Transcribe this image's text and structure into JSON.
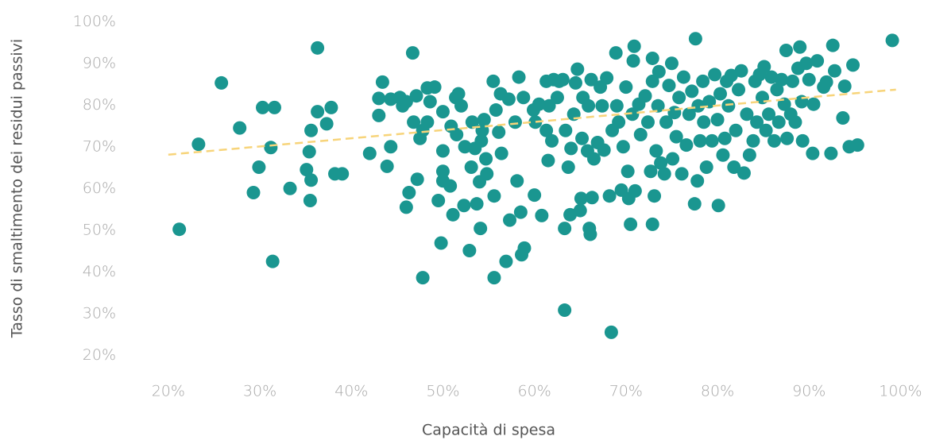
{
  "chart_data": {
    "type": "scatter",
    "xlabel": "Capacità di spesa",
    "ylabel": "Tasso di smaltimento dei residui passivi",
    "color": "#1a9690",
    "xlim": [
      15.5,
      103
    ],
    "ylim": [
      17,
      101
    ],
    "xticks": [
      {
        "value": 20,
        "label": "20%"
      },
      {
        "value": 30,
        "label": "30%"
      },
      {
        "value": 40,
        "label": "40%"
      },
      {
        "value": 50,
        "label": "50%"
      },
      {
        "value": 60,
        "label": "60%"
      },
      {
        "value": 70,
        "label": "70%"
      },
      {
        "value": 80,
        "label": "80%"
      },
      {
        "value": 90,
        "label": "90%"
      },
      {
        "value": 100,
        "label": "100%"
      }
    ],
    "yticks": [
      {
        "value": 20,
        "label": "20%"
      },
      {
        "value": 30,
        "label": "30%"
      },
      {
        "value": 40,
        "label": "40%"
      },
      {
        "value": 50,
        "label": "50%"
      },
      {
        "value": 60,
        "label": "60%"
      },
      {
        "value": 70,
        "label": "70%"
      },
      {
        "value": 80,
        "label": "80%"
      },
      {
        "value": 90,
        "label": "90%"
      },
      {
        "value": 100,
        "label": "100%"
      }
    ],
    "x": [
      21.2,
      23.3,
      25.8,
      27.8,
      29.3,
      29.9,
      30.3,
      31.2,
      31.6,
      31.4,
      33.3,
      35.1,
      35.4,
      35.5,
      35.6,
      35.6,
      36.3,
      36.3,
      37.3,
      37.8,
      38.2,
      39,
      42,
      43,
      43,
      43.4,
      43.9,
      44.3,
      44.3,
      45.3,
      45.6,
      46,
      46,
      46.3,
      46.7,
      46.8,
      47.1,
      47.2,
      47.5,
      47.8,
      47.8,
      48.3,
      48.3,
      49.1,
      48.6,
      49.5,
      49.8,
      50,
      50,
      50,
      50,
      50.8,
      50.9,
      51.1,
      51.4,
      51.5,
      51.7,
      52,
      52.3,
      52.4,
      52.9,
      53.1,
      53.2,
      53.5,
      53.7,
      54,
      54.1,
      54.2,
      54.3,
      54.5,
      54.7,
      54.8,
      55.5,
      55.6,
      55.6,
      55.8,
      56.1,
      56.3,
      56.4,
      56.9,
      57.2,
      57.3,
      57.9,
      58.1,
      58.3,
      58.5,
      58.6,
      58.8,
      58.9,
      59.9,
      60,
      60.1,
      60.5,
      60.8,
      61.3,
      61.3,
      61.5,
      61.6,
      61.9,
      62.1,
      62.5,
      62.7,
      63.1,
      63.3,
      63.3,
      63.4,
      63.7,
      63.9,
      64,
      64.3,
      64.5,
      64.7,
      65,
      65.1,
      65.2,
      65.3,
      65.8,
      65.9,
      66,
      66.1,
      66.2,
      66.3,
      66.5,
      66.9,
      67.2,
      67.4,
      67.6,
      67.9,
      68.2,
      68.4,
      68.5,
      68.9,
      69,
      69.2,
      69.5,
      69.7,
      70,
      70.2,
      70.3,
      70.5,
      70.7,
      70.8,
      70.9,
      71,
      71.4,
      71.6,
      72.1,
      72.4,
      72.7,
      72.9,
      72.9,
      72.9,
      73.1,
      73.3,
      73.5,
      73.6,
      73.8,
      74.2,
      74.4,
      74.7,
      75,
      75.1,
      75.3,
      75.5,
      75.8,
      76.1,
      76.3,
      76.6,
      76.9,
      77.2,
      77.5,
      77.6,
      77.8,
      77.9,
      78.1,
      78.4,
      78.5,
      78.8,
      79.1,
      79.4,
      79.7,
      80,
      80.1,
      80.3,
      80.6,
      80.8,
      81,
      81.2,
      81.5,
      81.8,
      82,
      82.3,
      82.6,
      82.9,
      83.2,
      83.5,
      83.9,
      84.1,
      84.3,
      84.6,
      84.9,
      85.1,
      85.3,
      85.6,
      85.9,
      86.2,
      86.5,
      86.7,
      87,
      87.3,
      87.5,
      87.6,
      88,
      88.2,
      88.5,
      88.8,
      89,
      89.2,
      89.3,
      89.7,
      90,
      90.4,
      90.5,
      90.9,
      91.6,
      91.9,
      92.4,
      92.6,
      92.8,
      93.7,
      93.9,
      94.4,
      94.8,
      95.3,
      99.1
    ],
    "y": [
      50.2,
      70.6,
      85.3,
      74.5,
      59,
      65.1,
      79.4,
      69.8,
      79.4,
      42.5,
      60,
      64.5,
      68.8,
      57.1,
      73.9,
      62,
      93.7,
      78.4,
      75.5,
      79.4,
      63.5,
      63.5,
      68.4,
      77.5,
      81.6,
      85.5,
      65.3,
      70,
      81.4,
      81.8,
      79.8,
      80.8,
      55.5,
      59,
      92.5,
      75.9,
      82.2,
      62.2,
      72,
      73.9,
      38.6,
      84.1,
      75.9,
      84.3,
      80.8,
      57.1,
      46.9,
      69,
      64.1,
      61.8,
      78.4,
      60.6,
      74.9,
      53.7,
      81.8,
      72.9,
      82.7,
      79.8,
      55.9,
      70,
      45.1,
      65.1,
      75.9,
      69.6,
      56.3,
      61.6,
      50.4,
      71.4,
      73.9,
      76.5,
      67.1,
      63.5,
      85.7,
      58.2,
      38.6,
      78.8,
      73.5,
      82.7,
      68.4,
      42.5,
      81.4,
      52.4,
      75.9,
      61.8,
      86.7,
      54.3,
      44.1,
      81.8,
      45.7,
      78.8,
      58.4,
      75.9,
      80.2,
      53.5,
      85.7,
      73.9,
      66.7,
      79.8,
      71.4,
      86.1,
      81.8,
      85.7,
      86.1,
      30.8,
      50.4,
      73.9,
      65.1,
      53.7,
      69.6,
      77.8,
      85.3,
      88.6,
      54.7,
      57.6,
      72,
      81.8,
      69,
      79.8,
      50.4,
      49,
      86.1,
      57.8,
      67.1,
      71,
      84.3,
      79.8,
      69.2,
      86.5,
      58.2,
      25.5,
      73.9,
      92.5,
      79.8,
      75.9,
      59.6,
      70,
      84.3,
      64.1,
      57.6,
      51.4,
      77.8,
      90.6,
      94.1,
      59.4,
      80.2,
      72.9,
      82.2,
      75.9,
      64.1,
      51.4,
      85.7,
      91.2,
      58.2,
      69,
      79.8,
      88,
      66.1,
      63.5,
      75.9,
      84.7,
      90,
      67.1,
      78.2,
      72.4,
      81.8,
      63.5,
      86.7,
      70.4,
      77.8,
      83.3,
      56.3,
      95.9,
      61.8,
      79.8,
      71.4,
      85.7,
      75.9,
      65.1,
      80.8,
      71.4,
      87.3,
      76.5,
      55.9,
      82.7,
      68,
      72,
      85.7,
      79.8,
      87.1,
      65.1,
      73.9,
      83.7,
      88.2,
      63.7,
      77.8,
      68,
      71.4,
      85.7,
      75.9,
      87.3,
      81.8,
      89.2,
      73.9,
      77.8,
      86.7,
      71.4,
      83.7,
      75.9,
      86.1,
      80.2,
      93.1,
      72,
      77.8,
      85.7,
      75.9,
      88.8,
      93.9,
      80.8,
      71.4,
      90,
      86.1,
      68.4,
      80.2,
      90.6,
      84.3,
      85.5,
      68.4,
      94.3,
      88.2,
      76.9,
      84.5,
      70,
      89.6,
      70.4,
      95.5
    ],
    "trendline": {
      "x": [
        20,
        99.5
      ],
      "y": [
        68.1,
        83.7
      ],
      "color": "#f7d47a",
      "dashed": true
    }
  }
}
